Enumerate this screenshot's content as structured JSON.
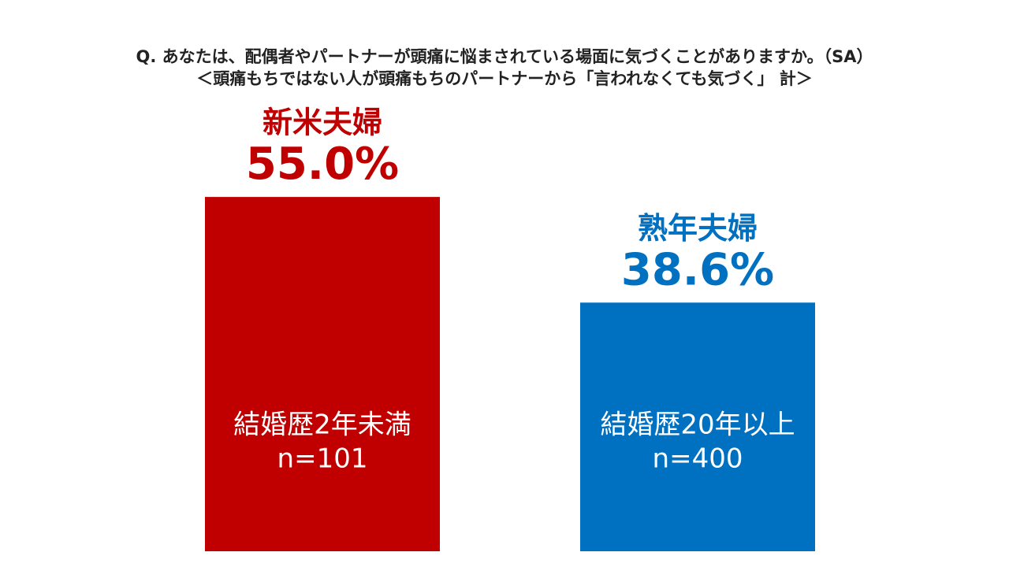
{
  "chart_data": {
    "type": "bar",
    "title": "Q. あなたは、配偶者やパートナーが頭痛に悩まされている場面に気づくことがありますか。（SA）",
    "subtitle": "＜頭痛もちではない人が頭痛もちのパートナーから「言われなくても気づく」 計＞",
    "categories": [
      "新米夫婦",
      "熟年夫婦"
    ],
    "values": [
      55.0,
      38.6
    ],
    "value_labels": [
      "55.0%",
      "38.6%"
    ],
    "bar_texts": [
      "結婚歴2年未満",
      "結婚歴20年以上"
    ],
    "sample_sizes": [
      "n=101",
      "n=400"
    ],
    "colors": [
      "#c00000",
      "#0070c0"
    ]
  }
}
